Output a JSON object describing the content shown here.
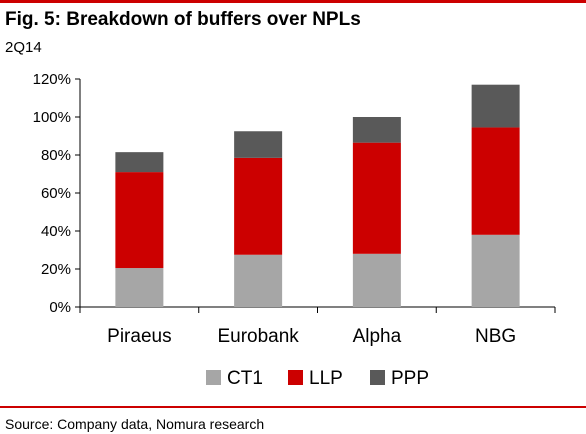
{
  "header": {
    "title": "Fig. 5: Breakdown of buffers over NPLs",
    "subtitle": "2Q14"
  },
  "footer": {
    "source": "Source: Company data, Nomura research"
  },
  "colors": {
    "rule": "#cc0000",
    "axis": "#000000"
  },
  "chart_data": {
    "type": "bar",
    "stacked": true,
    "categories": [
      "Piraeus",
      "Eurobank",
      "Alpha",
      "NBG"
    ],
    "series": [
      {
        "name": "CT1",
        "color": "#a6a6a6",
        "values": [
          20.5,
          27.5,
          28,
          38
        ]
      },
      {
        "name": "LLP",
        "color": "#cc0000",
        "values": [
          50.5,
          51,
          58.5,
          56.5
        ]
      },
      {
        "name": "PPP",
        "color": "#595959",
        "values": [
          10.5,
          14,
          13.5,
          22.5
        ]
      }
    ],
    "ylim": [
      0,
      120
    ],
    "yticks": [
      0,
      20,
      40,
      60,
      80,
      100,
      120
    ],
    "ytick_labels": [
      "0%",
      "20%",
      "40%",
      "60%",
      "80%",
      "100%",
      "120%"
    ],
    "grid": false,
    "legend_position": "bottom"
  }
}
